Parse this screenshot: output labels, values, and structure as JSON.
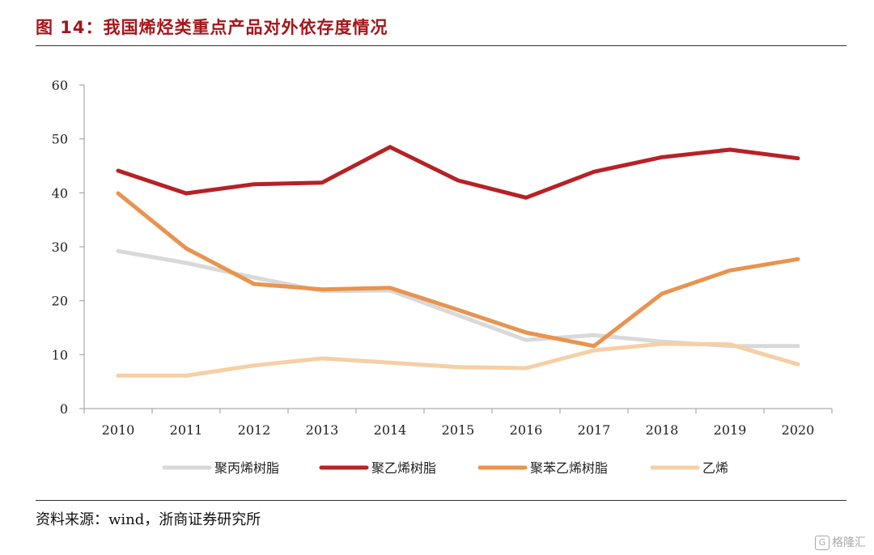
{
  "header": {
    "title": "图 14：我国烯烃类重点产品对外依存度情况"
  },
  "footer": {
    "source": "资料来源：wind，浙商证券研究所",
    "watermark": "格隆汇",
    "watermark_logo": "G"
  },
  "chart_data": {
    "type": "line",
    "title": "",
    "xlabel": "",
    "ylabel": "",
    "x": [
      "2010",
      "2011",
      "2012",
      "2013",
      "2014",
      "2015",
      "2016",
      "2017",
      "2018",
      "2019",
      "2020"
    ],
    "ylim": [
      0,
      60
    ],
    "yticks": [
      0,
      10,
      20,
      30,
      40,
      50,
      60
    ],
    "grid": false,
    "legend_position": "bottom",
    "series": [
      {
        "name": "聚丙烯树脂",
        "color": "#d9d9d9",
        "values": [
          29.2,
          27.0,
          24.3,
          21.8,
          21.9,
          17.3,
          12.7,
          13.6,
          12.4,
          11.6,
          11.6
        ]
      },
      {
        "name": "聚乙烯树脂",
        "color": "#b72125",
        "values": [
          44.1,
          39.9,
          41.6,
          41.9,
          48.5,
          42.3,
          39.1,
          43.9,
          46.6,
          48.0,
          46.4
        ]
      },
      {
        "name": "聚苯乙烯树脂",
        "color": "#e8944f",
        "values": [
          39.9,
          29.7,
          23.1,
          22.1,
          22.4,
          18.3,
          14.1,
          11.6,
          21.3,
          25.6,
          27.7
        ]
      },
      {
        "name": "乙烯",
        "color": "#f5cfa6",
        "values": [
          6.1,
          6.1,
          8.0,
          9.3,
          8.5,
          7.7,
          7.5,
          10.8,
          12.0,
          11.9,
          8.2
        ]
      }
    ]
  }
}
